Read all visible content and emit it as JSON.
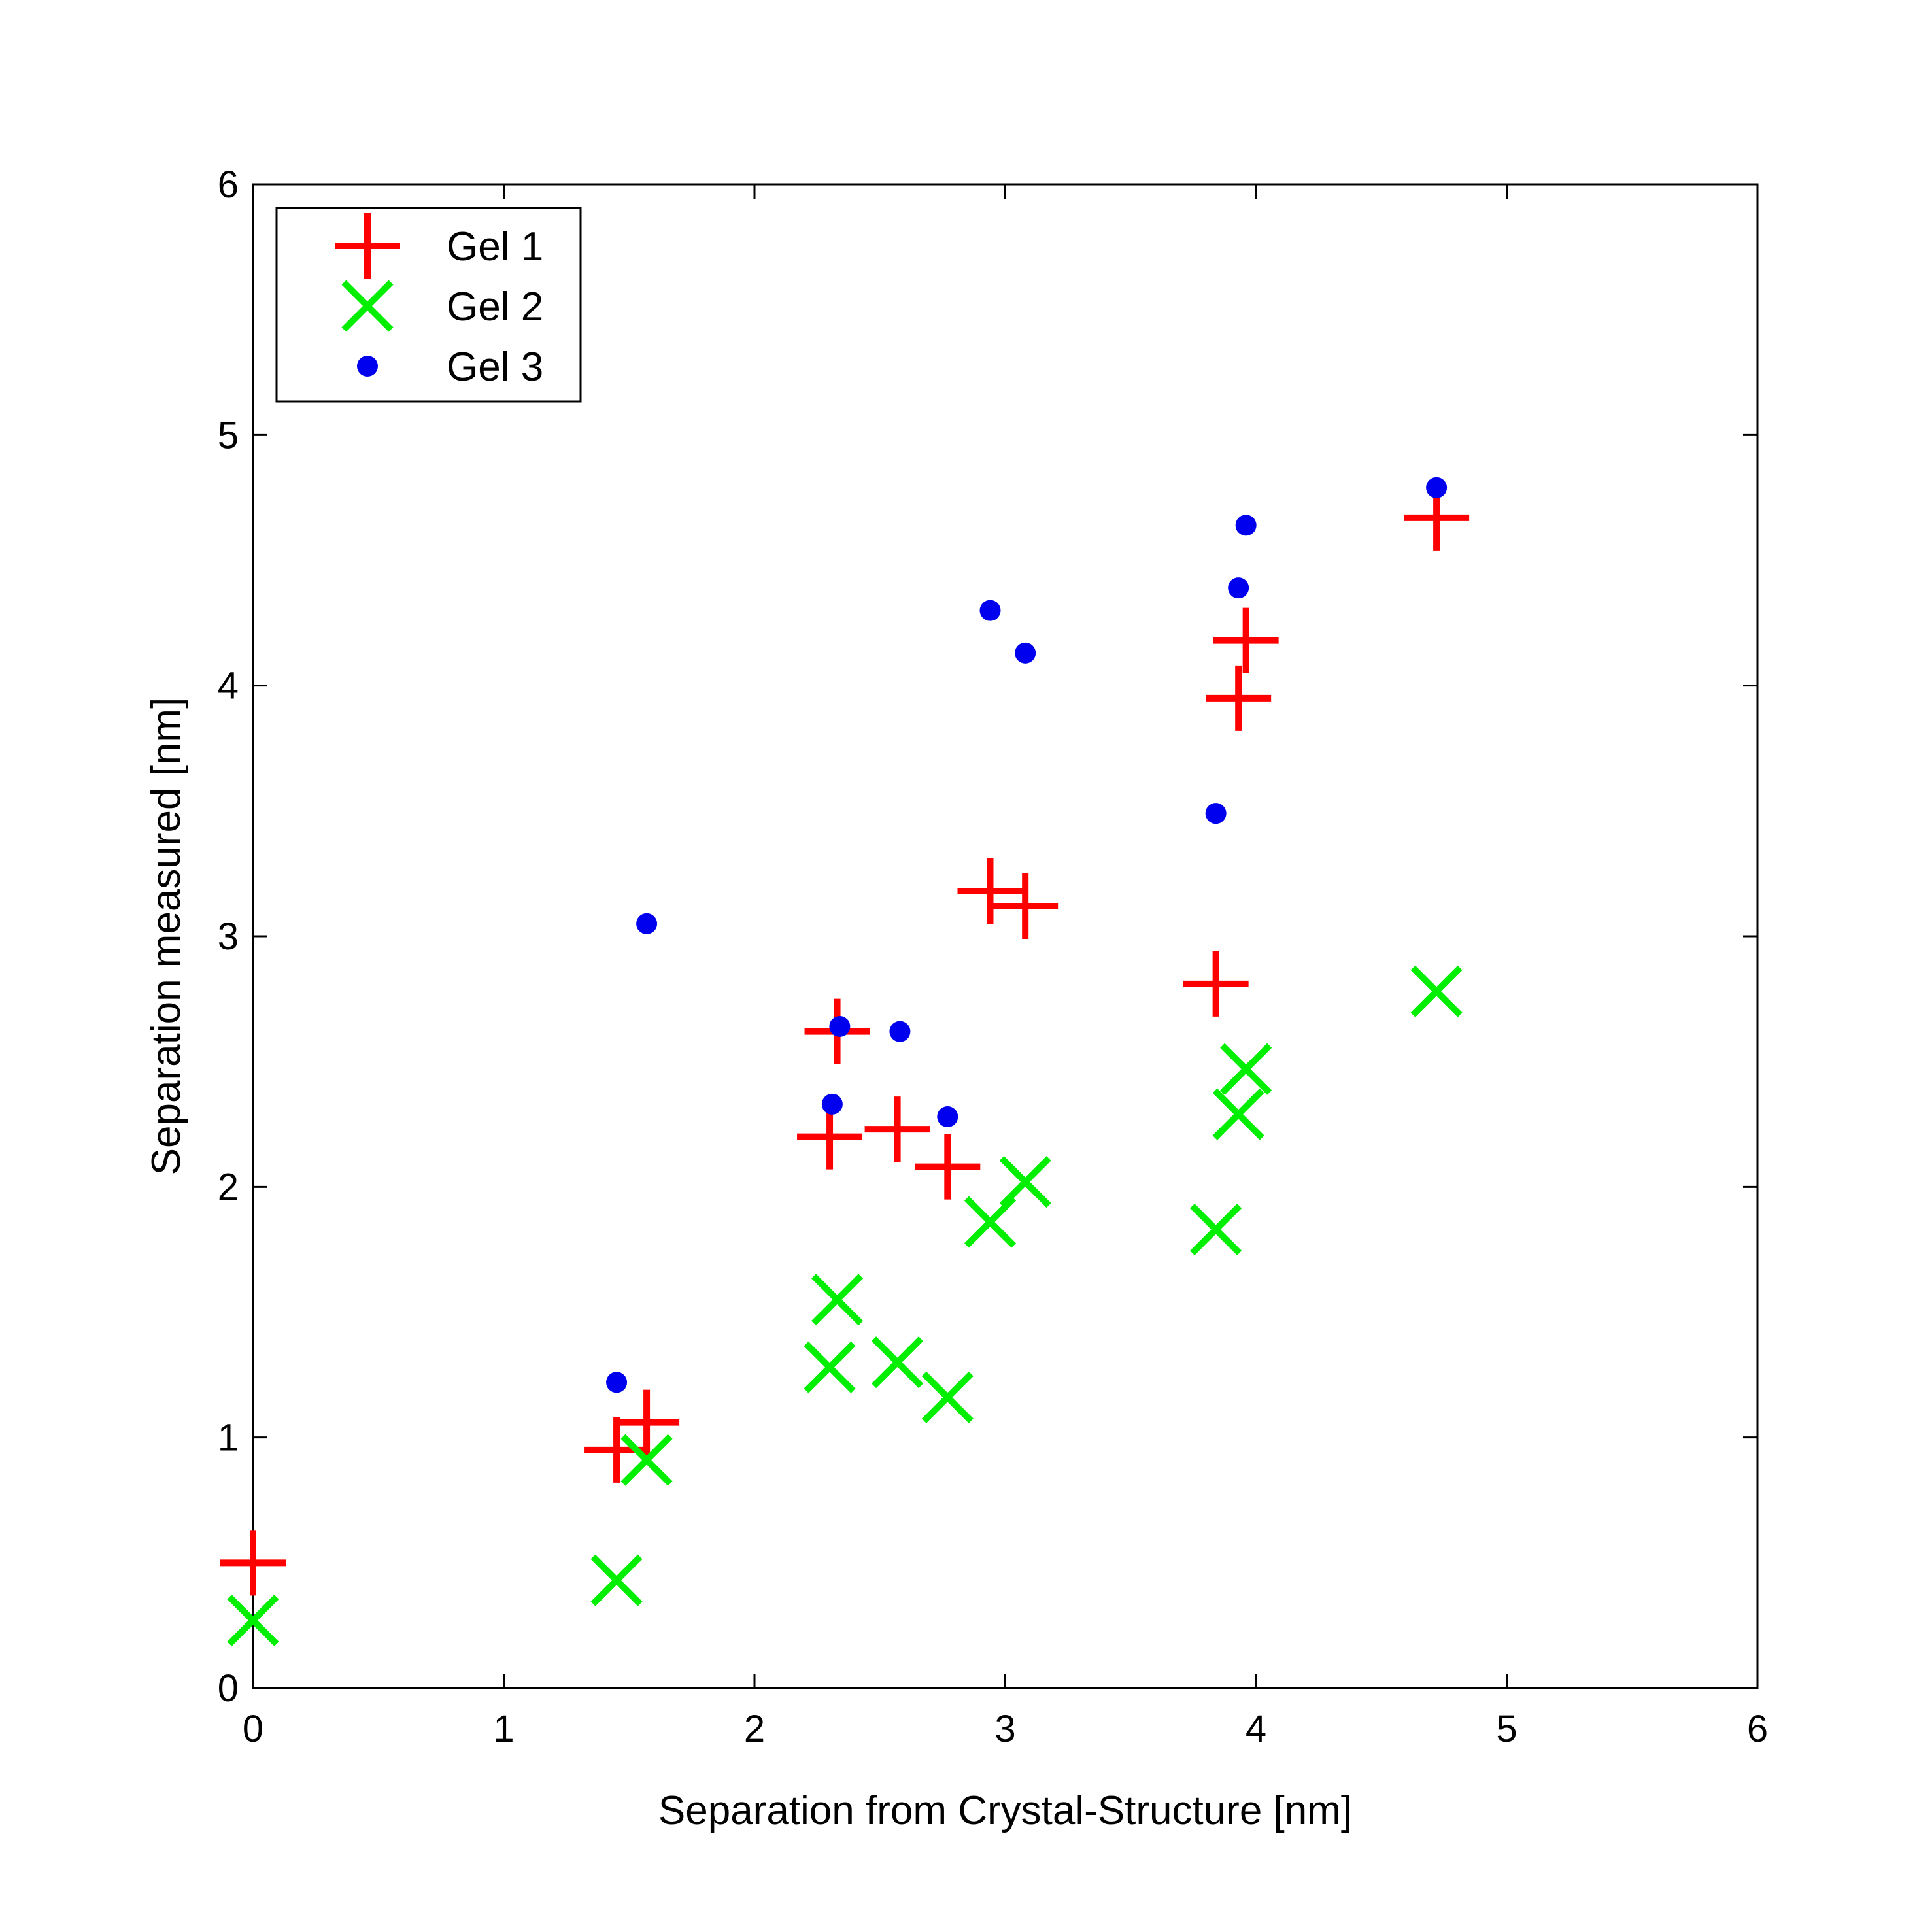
{
  "chart_data": {
    "type": "scatter",
    "title": "",
    "xlabel": "Separation from Crystal-Structure [nm]",
    "ylabel": "Separation measured [nm]",
    "xlim": [
      0,
      6
    ],
    "ylim": [
      0,
      6
    ],
    "xticks": [
      0,
      1,
      2,
      3,
      4,
      5,
      6
    ],
    "yticks": [
      0,
      1,
      2,
      3,
      4,
      5,
      6
    ],
    "xtick_labels": [
      "0",
      "1",
      "2",
      "3",
      "4",
      "5",
      "6"
    ],
    "ytick_labels": [
      "0",
      "1",
      "2",
      "3",
      "4",
      "5",
      "6"
    ],
    "grid": false,
    "legend_position": "top-left",
    "series": [
      {
        "name": "Gel 1",
        "marker": "plus",
        "color": "#ff0000",
        "points": [
          [
            0.0,
            0.5
          ],
          [
            1.45,
            0.95
          ],
          [
            1.57,
            1.06
          ],
          [
            2.3,
            2.2
          ],
          [
            2.33,
            2.62
          ],
          [
            2.57,
            2.23
          ],
          [
            2.77,
            2.08
          ],
          [
            2.94,
            3.18
          ],
          [
            3.08,
            3.12
          ],
          [
            3.84,
            2.81
          ],
          [
            3.93,
            3.95
          ],
          [
            3.96,
            4.18
          ],
          [
            4.72,
            4.67
          ]
        ]
      },
      {
        "name": "Gel 2",
        "marker": "x",
        "color": "#00ee00",
        "points": [
          [
            0.0,
            0.27
          ],
          [
            1.45,
            0.43
          ],
          [
            1.57,
            0.91
          ],
          [
            2.3,
            1.28
          ],
          [
            2.33,
            1.55
          ],
          [
            2.57,
            1.3
          ],
          [
            2.77,
            1.16
          ],
          [
            2.94,
            1.86
          ],
          [
            3.08,
            2.02
          ],
          [
            3.84,
            1.83
          ],
          [
            3.93,
            2.29
          ],
          [
            3.96,
            2.47
          ],
          [
            4.72,
            2.78
          ]
        ]
      },
      {
        "name": "Gel 3",
        "marker": "dot",
        "color": "#0000ee",
        "points": [
          [
            1.45,
            1.22
          ],
          [
            1.57,
            3.05
          ],
          [
            2.31,
            2.33
          ],
          [
            2.34,
            2.64
          ],
          [
            2.58,
            2.62
          ],
          [
            2.77,
            2.28
          ],
          [
            2.94,
            4.3
          ],
          [
            3.08,
            4.13
          ],
          [
            3.84,
            3.49
          ],
          [
            3.93,
            4.39
          ],
          [
            3.96,
            4.64
          ],
          [
            4.72,
            4.79
          ]
        ]
      }
    ]
  }
}
